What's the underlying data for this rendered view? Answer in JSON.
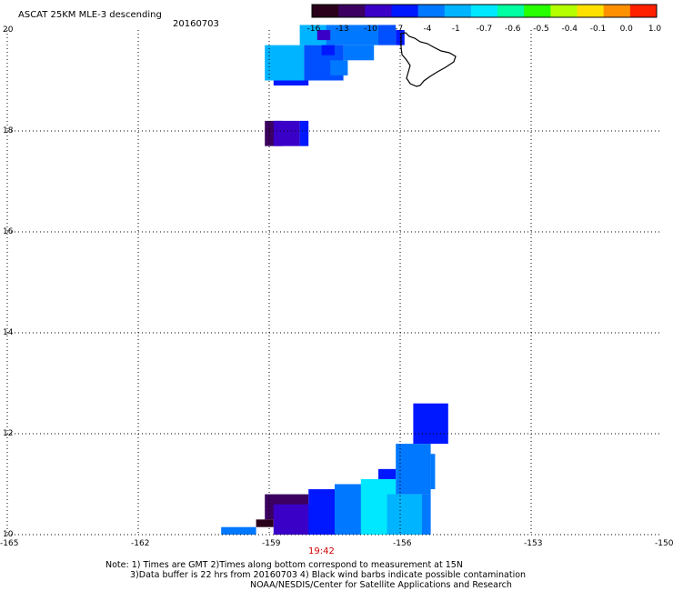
{
  "header": {
    "title": "ASCAT 25KM MLE-3 descending",
    "date": "20160703"
  },
  "colorbar": {
    "tick_labels": [
      "-16",
      "-13",
      "-10",
      "-7",
      "-4",
      "-1",
      "-0.7",
      "-0.6",
      "-0.5",
      "-0.4",
      "-0.1",
      "0.0",
      "1.0"
    ],
    "colors": [
      "#2a001a",
      "#3b0060",
      "#3a00c8",
      "#0018ff",
      "#0078ff",
      "#00b4ff",
      "#00e8ff",
      "#00ffa0",
      "#28ff00",
      "#b4ff00",
      "#ffe000",
      "#ff9000",
      "#ff2000"
    ]
  },
  "footer": {
    "time_label": "19:42",
    "note_line1": "Note: 1) Times are GMT 2)Times along bottom correspond to measurement at 15N",
    "note_line2": "3)Data buffer is 22 hrs from 20160703 4) Black wind barbs indicate possible contamination",
    "note_line3": "NOAA/NESDIS/Center for Satellite Applications and Research"
  },
  "chart_data": {
    "type": "heatmap",
    "title": "ASCAT 25KM MLE-3 descending",
    "x_tick_labels": [
      "-165",
      "-162",
      "-159",
      "-156",
      "-153",
      "-150"
    ],
    "y_tick_labels": [
      "10",
      "12",
      "14",
      "16",
      "18",
      "20"
    ],
    "x_ticks": [
      -165,
      -162,
      -159,
      -156,
      -153,
      -150
    ],
    "y_ticks": [
      10,
      12,
      14,
      16,
      18,
      20
    ],
    "xlim": [
      -165,
      -150
    ],
    "ylim": [
      10,
      20
    ],
    "grid": true,
    "color_scale_values": [
      -16,
      -13,
      -10,
      -7,
      -4,
      -1,
      -0.7,
      -0.6,
      -0.5,
      -0.4,
      -0.1,
      0.0,
      1.0
    ],
    "cells": [
      {
        "lon0": -158.3,
        "lon1": -157.7,
        "lat0": 19.7,
        "lat1": 20.1,
        "color": "#00b4ff"
      },
      {
        "lon0": -157.7,
        "lon1": -156.5,
        "lat0": 19.7,
        "lat1": 20.1,
        "color": "#0078ff"
      },
      {
        "lon0": -156.5,
        "lon1": -156.1,
        "lat0": 19.7,
        "lat1": 20.1,
        "color": "#0050ff"
      },
      {
        "lon0": -156.1,
        "lon1": -155.9,
        "lat0": 19.7,
        "lat1": 20.0,
        "color": "#0018ff"
      },
      {
        "lon0": -157.9,
        "lon1": -157.6,
        "lat0": 19.8,
        "lat1": 20.0,
        "color": "#3a00c8"
      },
      {
        "lon0": -159.1,
        "lon1": -158.2,
        "lat0": 19.0,
        "lat1": 19.7,
        "color": "#00b4ff"
      },
      {
        "lon0": -158.2,
        "lon1": -157.3,
        "lat0": 19.0,
        "lat1": 19.7,
        "color": "#0050ff"
      },
      {
        "lon0": -157.3,
        "lon1": -156.6,
        "lat0": 19.4,
        "lat1": 19.7,
        "color": "#0078ff"
      },
      {
        "lon0": -157.8,
        "lon1": -157.5,
        "lat0": 19.5,
        "lat1": 19.7,
        "color": "#0018ff"
      },
      {
        "lon0": -158.9,
        "lon1": -158.1,
        "lat0": 18.9,
        "lat1": 19.0,
        "color": "#0018ff"
      },
      {
        "lon0": -157.6,
        "lon1": -157.2,
        "lat0": 19.1,
        "lat1": 19.4,
        "color": "#0078ff"
      },
      {
        "lon0": -159.1,
        "lon1": -158.7,
        "lat0": 17.7,
        "lat1": 18.2,
        "color": "#3b0060"
      },
      {
        "lon0": -158.9,
        "lon1": -158.3,
        "lat0": 17.7,
        "lat1": 18.2,
        "color": "#3a00c8"
      },
      {
        "lon0": -158.3,
        "lon1": -158.1,
        "lat0": 17.7,
        "lat1": 18.2,
        "color": "#0018ff"
      },
      {
        "lon0": -160.1,
        "lon1": -159.3,
        "lat0": 10.0,
        "lat1": 10.15,
        "color": "#0078ff"
      },
      {
        "lon0": -159.3,
        "lon1": -158.9,
        "lat0": 10.15,
        "lat1": 10.3,
        "color": "#2a001a"
      },
      {
        "lon0": -159.1,
        "lon1": -158.1,
        "lat0": 10.3,
        "lat1": 10.8,
        "color": "#3b0060"
      },
      {
        "lon0": -158.9,
        "lon1": -157.9,
        "lat0": 10.0,
        "lat1": 10.6,
        "color": "#3a00c8"
      },
      {
        "lon0": -158.1,
        "lon1": -157.3,
        "lat0": 10.0,
        "lat1": 10.9,
        "color": "#0018ff"
      },
      {
        "lon0": -157.5,
        "lon1": -156.7,
        "lat0": 10.0,
        "lat1": 11.0,
        "color": "#0078ff"
      },
      {
        "lon0": -156.9,
        "lon1": -156.1,
        "lat0": 10.0,
        "lat1": 11.1,
        "color": "#00e8ff"
      },
      {
        "lon0": -156.3,
        "lon1": -155.5,
        "lat0": 10.0,
        "lat1": 10.8,
        "color": "#00b4ff"
      },
      {
        "lon0": -156.5,
        "lon1": -156.1,
        "lat0": 11.1,
        "lat1": 11.3,
        "color": "#0018ff"
      },
      {
        "lon0": -156.1,
        "lon1": -155.3,
        "lat0": 10.8,
        "lat1": 11.8,
        "color": "#0078ff"
      },
      {
        "lon0": -155.5,
        "lon1": -155.3,
        "lat0": 10.0,
        "lat1": 10.8,
        "color": "#0078ff"
      },
      {
        "lon0": -155.7,
        "lon1": -154.9,
        "lat0": 11.8,
        "lat1": 12.6,
        "color": "#0018ff"
      },
      {
        "lon0": -155.3,
        "lon1": -155.2,
        "lat0": 10.9,
        "lat1": 11.6,
        "color": "#0078ff"
      }
    ]
  }
}
